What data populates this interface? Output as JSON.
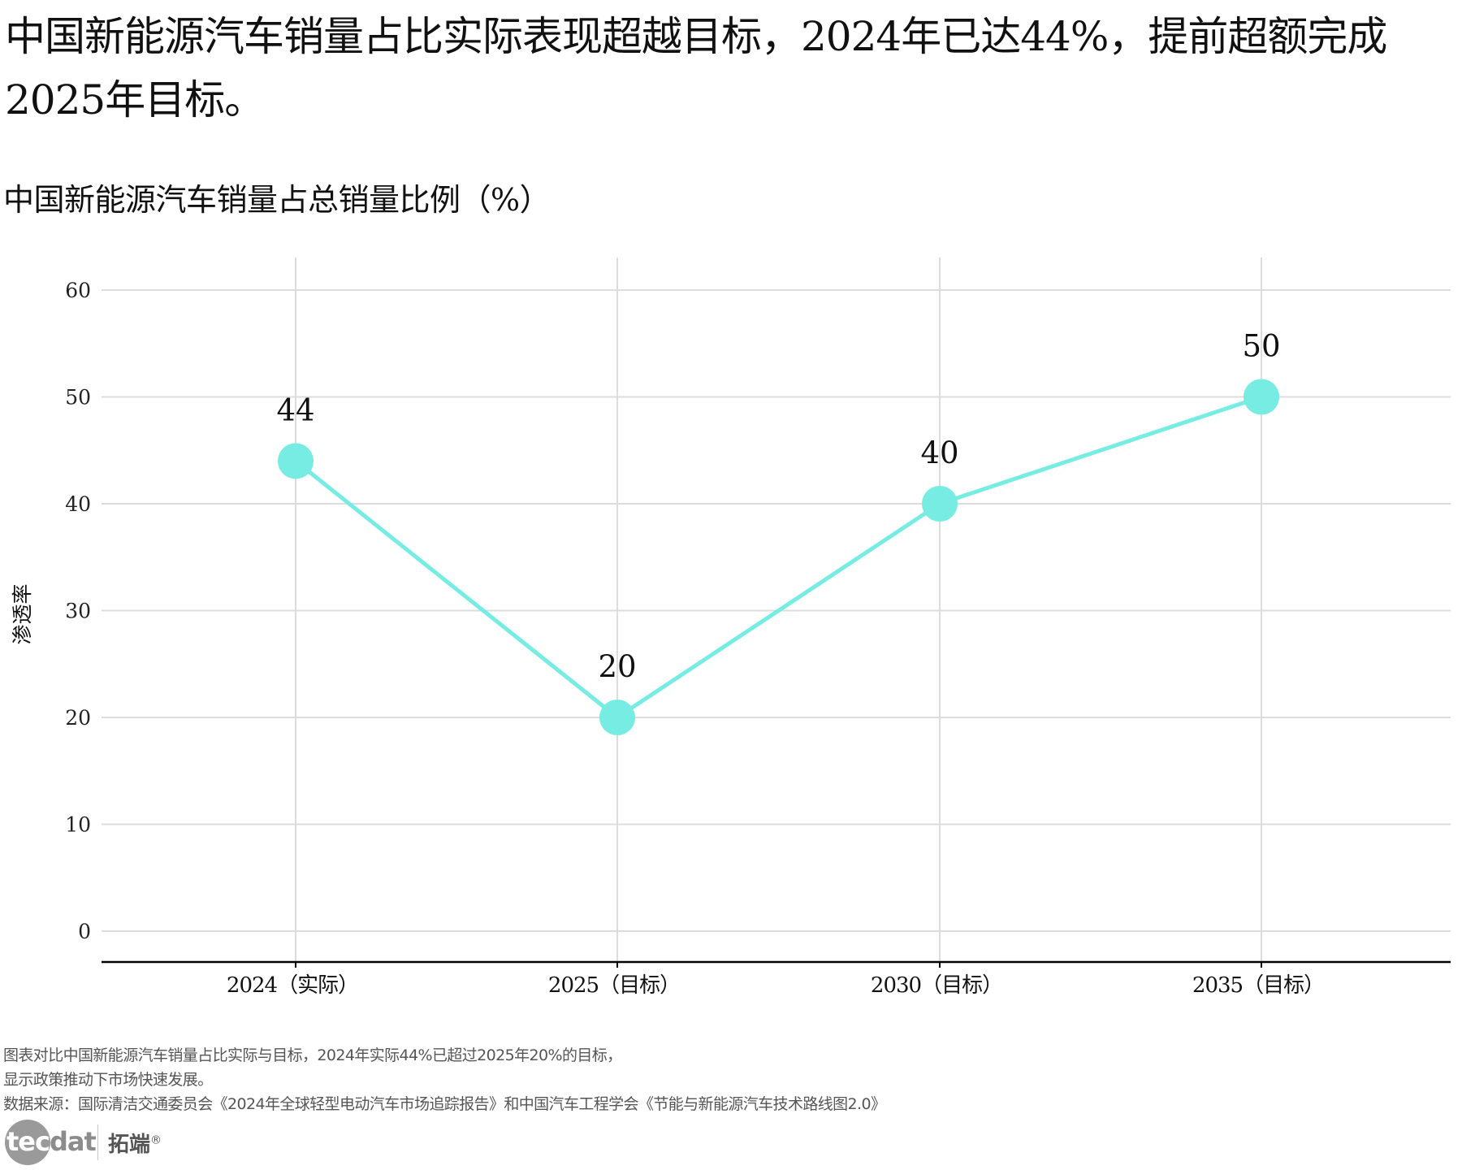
{
  "headline": "中国新能源汽车销量占比实际表现超越目标，2024年已达44%，提前超额完成2025年目标。",
  "chart_title": "中国新能源汽车销量占总销量比例（%）",
  "chart_data": {
    "type": "line",
    "title": "中国新能源汽车销量占总销量比例（%）",
    "xlabel": "",
    "ylabel": "渗透率",
    "categories": [
      "2024（实际）",
      "2025（目标）",
      "2030（目标）",
      "2035（目标）"
    ],
    "values": [
      44,
      20,
      40,
      50
    ],
    "data_labels": [
      "44",
      "20",
      "40",
      "50"
    ],
    "ylim": [
      0,
      60
    ],
    "yticks": [
      0,
      10,
      20,
      30,
      40,
      50,
      60
    ],
    "grid": true,
    "legend": null,
    "line_color": "#76ECE3",
    "marker": "circle"
  },
  "footer": {
    "note_line1": "图表对比中国新能源汽车销量占比实际与目标，2024年实际44%已超过2025年20%的目标，",
    "note_line2": "显示政策推动下市场快速发展。",
    "source": "数据来源：国际清洁交通委员会《2024年全球轻型电动汽车市场追踪报告》和中国汽车工程学会《节能与新能源汽车技术路线图2.0》"
  },
  "logo": {
    "latin_part1": "tec",
    "latin_part2": "dat",
    "chinese": "拓端",
    "mark": "®"
  }
}
